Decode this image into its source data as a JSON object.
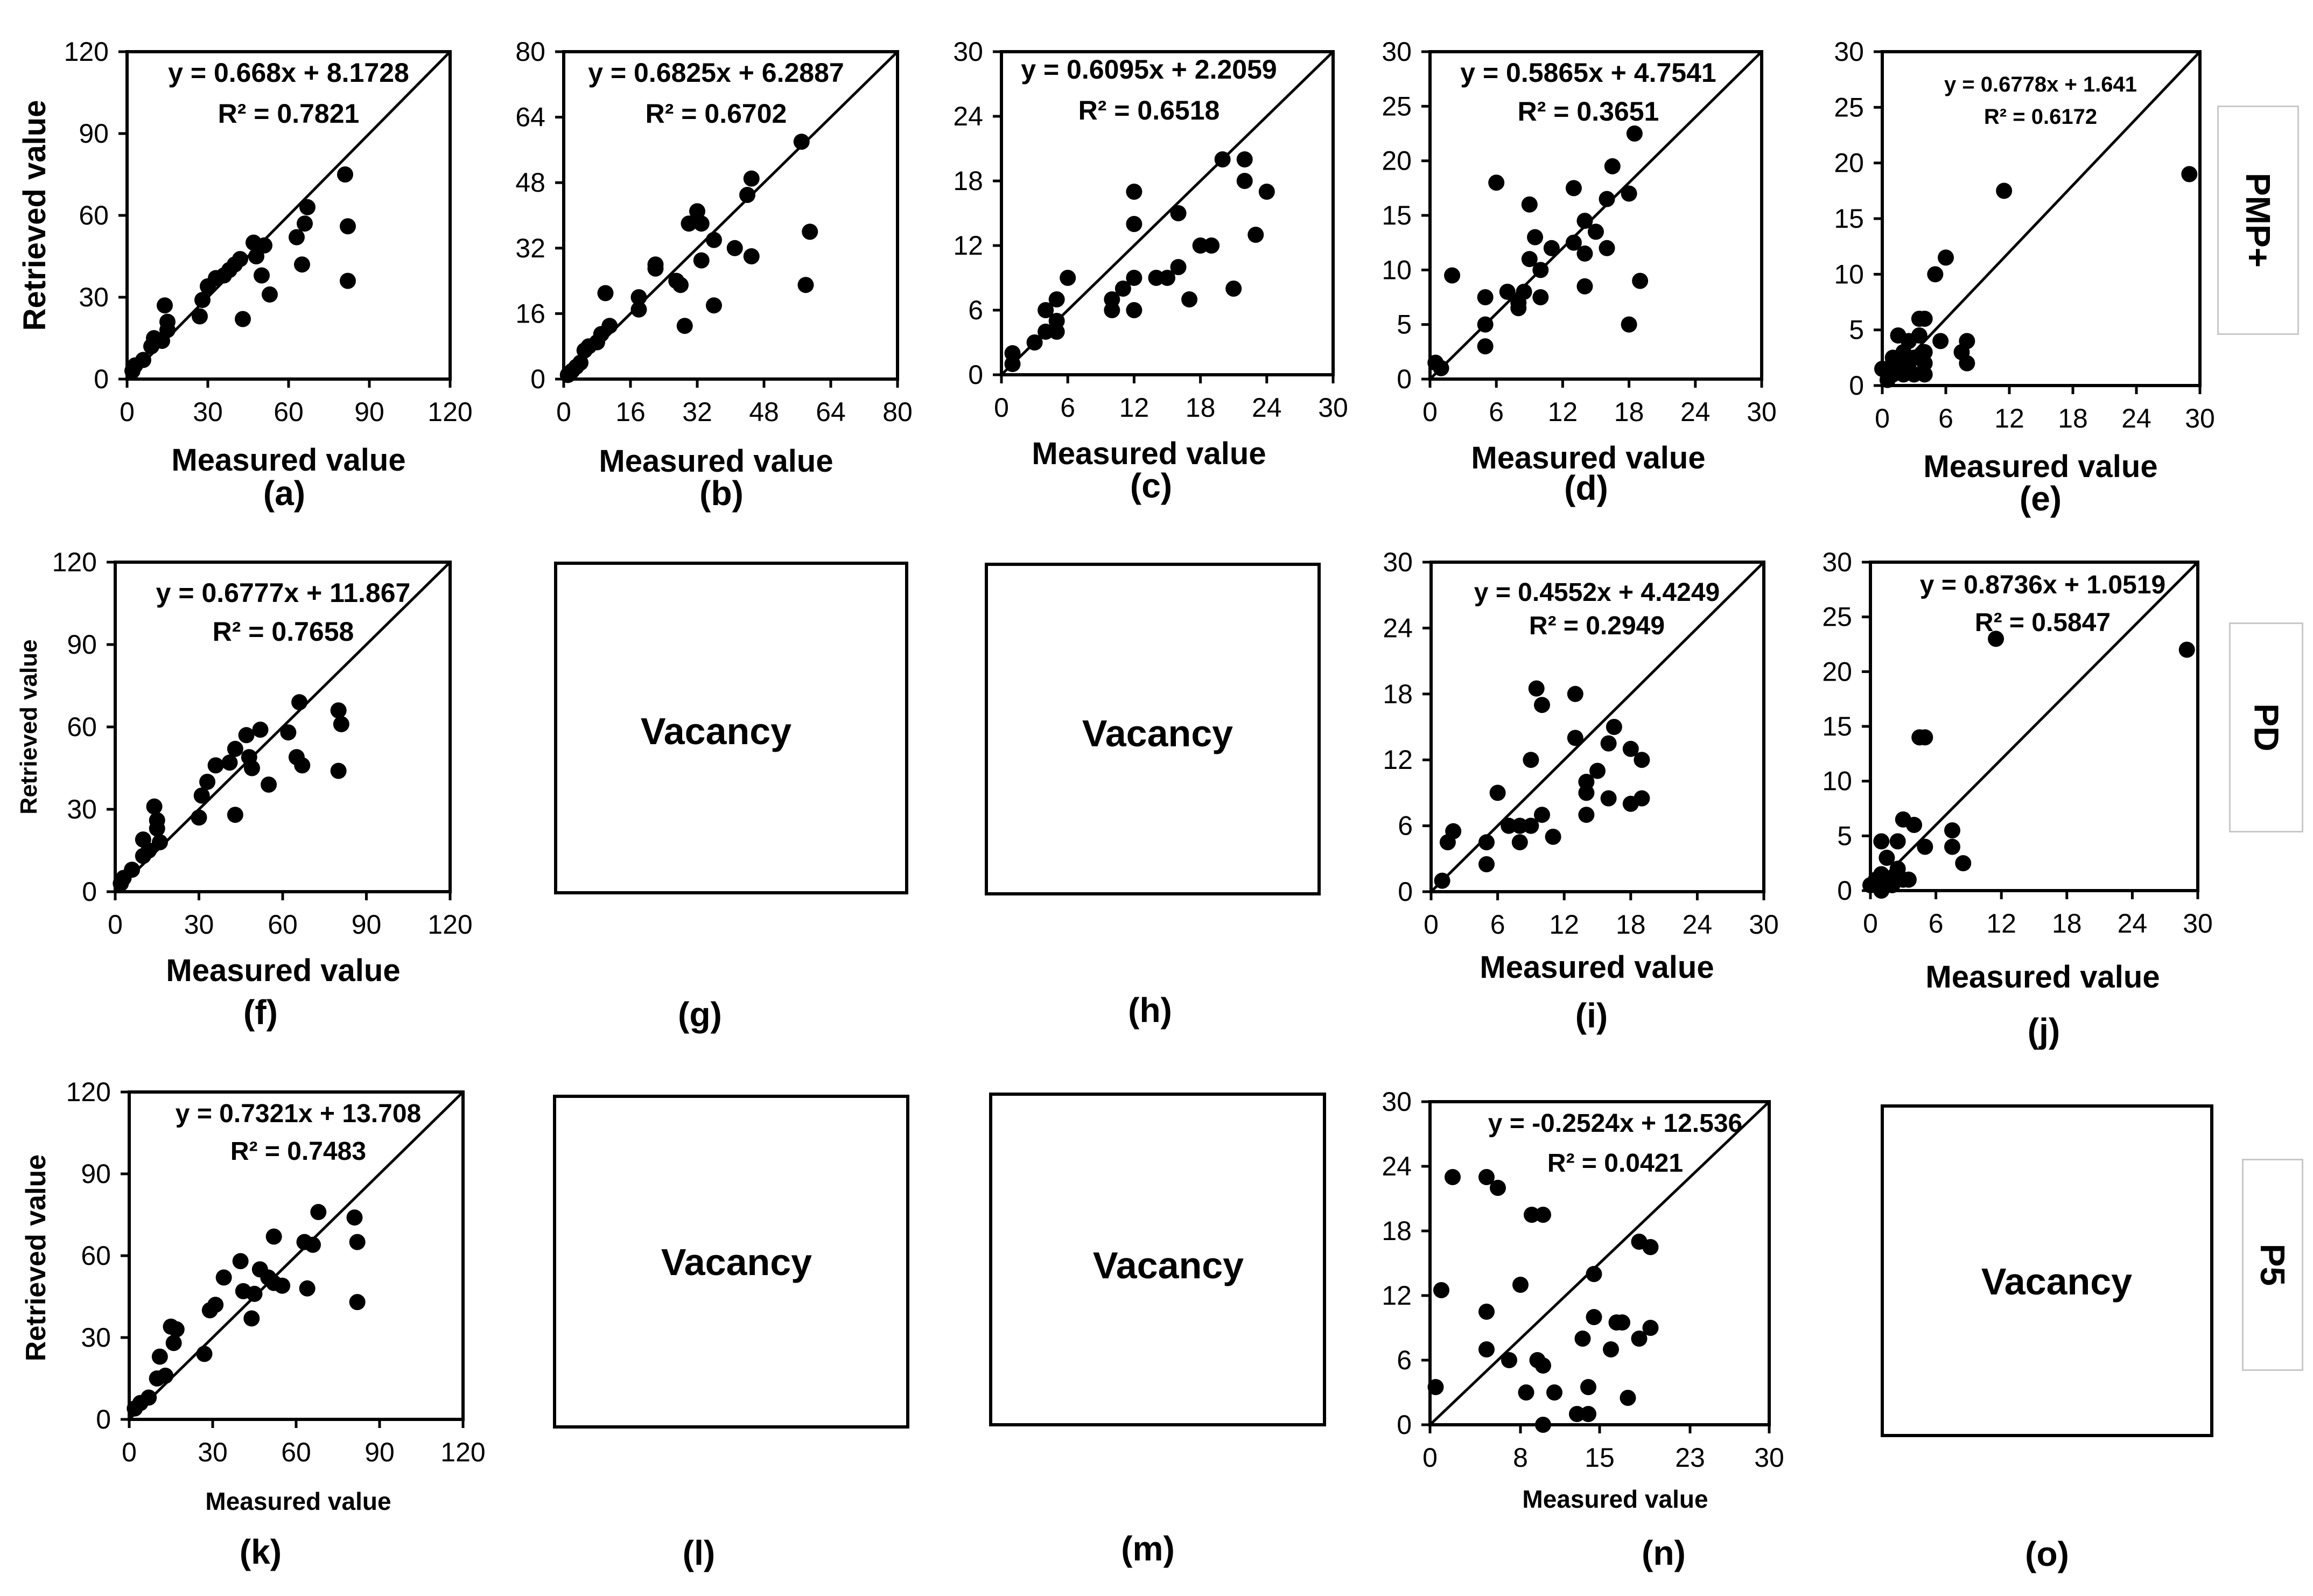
{
  "figure": {
    "row_labels": [
      "PMP+",
      "PD",
      "P5"
    ],
    "vacancy_text": "Vacancy",
    "colors": {
      "ink": "#000000",
      "box_border": "#c8c8c8"
    }
  },
  "chart_data": [
    {
      "panel": "(a)",
      "type": "scatter",
      "equation": "y = 0.668x + 8.1728",
      "r2": "R² = 0.7821",
      "xlabel": "Measured value",
      "ylabel": "Retrieved value",
      "xlim": [
        0,
        120
      ],
      "ylim": [
        0,
        120
      ],
      "xticks": [
        0,
        30,
        60,
        90,
        120
      ],
      "yticks": [
        0,
        30,
        60,
        90,
        120
      ],
      "points": [
        [
          2,
          3
        ],
        [
          3,
          5
        ],
        [
          6,
          7
        ],
        [
          9,
          12
        ],
        [
          10,
          15
        ],
        [
          13,
          14
        ],
        [
          14,
          27
        ],
        [
          15,
          18
        ],
        [
          15,
          21
        ],
        [
          27,
          23
        ],
        [
          28,
          29
        ],
        [
          30,
          34
        ],
        [
          33,
          37
        ],
        [
          36,
          38
        ],
        [
          38,
          40
        ],
        [
          40,
          42
        ],
        [
          42,
          44
        ],
        [
          43,
          22
        ],
        [
          47,
          50
        ],
        [
          48,
          45
        ],
        [
          50,
          38
        ],
        [
          51,
          49
        ],
        [
          53,
          31
        ],
        [
          63,
          52
        ],
        [
          65,
          42
        ],
        [
          66,
          57
        ],
        [
          67,
          63
        ],
        [
          81,
          75
        ],
        [
          82,
          56
        ],
        [
          82,
          36
        ]
      ]
    },
    {
      "panel": "(b)",
      "type": "scatter",
      "equation": "y = 0.6825x + 6.2887",
      "r2": "R² = 0.6702",
      "xlabel": "Measured value",
      "ylabel": "",
      "xlim": [
        0,
        80
      ],
      "ylim": [
        0,
        80
      ],
      "xticks": [
        0,
        16,
        32,
        48,
        64,
        80
      ],
      "yticks": [
        0,
        16,
        32,
        48,
        64,
        80
      ],
      "points": [
        [
          1,
          1
        ],
        [
          2,
          2
        ],
        [
          3,
          3
        ],
        [
          4,
          4
        ],
        [
          5,
          7
        ],
        [
          6,
          8
        ],
        [
          8,
          9
        ],
        [
          9,
          11
        ],
        [
          10,
          21
        ],
        [
          11,
          13
        ],
        [
          18,
          17
        ],
        [
          18,
          20
        ],
        [
          22,
          27
        ],
        [
          22,
          28
        ],
        [
          27,
          24
        ],
        [
          28,
          23
        ],
        [
          29,
          13
        ],
        [
          30,
          38
        ],
        [
          32,
          41
        ],
        [
          33,
          29
        ],
        [
          33,
          38
        ],
        [
          36,
          34
        ],
        [
          36,
          18
        ],
        [
          41,
          32
        ],
        [
          44,
          45
        ],
        [
          45,
          49
        ],
        [
          45,
          30
        ],
        [
          57,
          58
        ],
        [
          58,
          23
        ],
        [
          59,
          36
        ]
      ]
    },
    {
      "panel": "(c)",
      "type": "scatter",
      "equation": "y = 0.6095x + 2.2059",
      "r2": "R² = 0.6518",
      "xlabel": "Measured value",
      "ylabel": "",
      "xlim": [
        0,
        30
      ],
      "ylim": [
        0,
        30
      ],
      "xticks": [
        0,
        6,
        12,
        18,
        24,
        30
      ],
      "yticks": [
        0,
        6,
        12,
        18,
        24,
        30
      ],
      "points": [
        [
          1,
          2
        ],
        [
          1,
          1
        ],
        [
          3,
          3
        ],
        [
          4,
          4
        ],
        [
          4,
          6
        ],
        [
          5,
          7
        ],
        [
          5,
          4
        ],
        [
          5,
          5
        ],
        [
          6,
          9
        ],
        [
          10,
          6
        ],
        [
          10,
          7
        ],
        [
          11,
          8
        ],
        [
          12,
          17
        ],
        [
          12,
          14
        ],
        [
          12,
          9
        ],
        [
          12,
          6
        ],
        [
          14,
          9
        ],
        [
          15,
          9
        ],
        [
          16,
          15
        ],
        [
          16,
          10
        ],
        [
          17,
          7
        ],
        [
          18,
          12
        ],
        [
          19,
          12
        ],
        [
          20,
          20
        ],
        [
          21,
          8
        ],
        [
          22,
          18
        ],
        [
          22,
          20
        ],
        [
          23,
          13
        ],
        [
          24,
          17
        ]
      ]
    },
    {
      "panel": "(d)",
      "type": "scatter",
      "equation": "y = 0.5865x + 4.7541",
      "r2": "R² = 0.3651",
      "xlabel": "Measured value",
      "ylabel": "",
      "xlim": [
        0,
        30
      ],
      "ylim": [
        0,
        30
      ],
      "xticks": [
        0,
        6,
        12,
        18,
        24,
        30
      ],
      "yticks": [
        0,
        5,
        10,
        15,
        20,
        25,
        30
      ],
      "points": [
        [
          0.5,
          1.5
        ],
        [
          1,
          1
        ],
        [
          2,
          9.5
        ],
        [
          5,
          3
        ],
        [
          5,
          5
        ],
        [
          5,
          7.5
        ],
        [
          6,
          18
        ],
        [
          7,
          8
        ],
        [
          8,
          6.5
        ],
        [
          8,
          7
        ],
        [
          8.5,
          8
        ],
        [
          9,
          11
        ],
        [
          9,
          16
        ],
        [
          9.5,
          13
        ],
        [
          10,
          7.5
        ],
        [
          10,
          10
        ],
        [
          11,
          12
        ],
        [
          13,
          12.5
        ],
        [
          13,
          17.5
        ],
        [
          14,
          14.5
        ],
        [
          14,
          8.5
        ],
        [
          14,
          11.5
        ],
        [
          15,
          13.5
        ],
        [
          16,
          12
        ],
        [
          16,
          16.5
        ],
        [
          16.5,
          19.5
        ],
        [
          18,
          17
        ],
        [
          18,
          5
        ],
        [
          18.5,
          22.5
        ],
        [
          19,
          9
        ]
      ]
    },
    {
      "panel": "(e)",
      "type": "scatter",
      "equation": "y = 0.6778x + 1.641",
      "r2": "R² = 0.6172",
      "xlabel": "Measured value",
      "ylabel": "",
      "xlim": [
        0,
        30
      ],
      "ylim": [
        0,
        30
      ],
      "xticks": [
        0,
        6,
        12,
        18,
        24,
        30
      ],
      "yticks": [
        0,
        5,
        10,
        15,
        20,
        25,
        30
      ],
      "points": [
        [
          0,
          1.5
        ],
        [
          0.5,
          0.5
        ],
        [
          1,
          1
        ],
        [
          1,
          2
        ],
        [
          1.5,
          4.5
        ],
        [
          1.5,
          1.5
        ],
        [
          2,
          2
        ],
        [
          2,
          3
        ],
        [
          2,
          1
        ],
        [
          2.5,
          4
        ],
        [
          3,
          2.5
        ],
        [
          3,
          1
        ],
        [
          3.5,
          6
        ],
        [
          4,
          1
        ],
        [
          4,
          2
        ],
        [
          4,
          3
        ],
        [
          4,
          6
        ],
        [
          5,
          10
        ],
        [
          5.5,
          4
        ],
        [
          6,
          11.5
        ],
        [
          7.5,
          3
        ],
        [
          8,
          4
        ],
        [
          8,
          2
        ],
        [
          11.5,
          17.5
        ],
        [
          29,
          19
        ],
        [
          1,
          2.5
        ],
        [
          2.5,
          1.5
        ],
        [
          3.5,
          4.5
        ]
      ]
    },
    {
      "panel": "(f)",
      "type": "scatter",
      "equation": "y = 0.6777x + 11.867",
      "r2": "R² = 0.7658",
      "xlabel": "Measured value",
      "ylabel": "Retrieved value",
      "xlim": [
        0,
        120
      ],
      "ylim": [
        0,
        120
      ],
      "xticks": [
        0,
        30,
        60,
        90,
        120
      ],
      "yticks": [
        0,
        30,
        60,
        90,
        120
      ],
      "points": [
        [
          2,
          3
        ],
        [
          3,
          5
        ],
        [
          6,
          8
        ],
        [
          10,
          13
        ],
        [
          12,
          15
        ],
        [
          14,
          31
        ],
        [
          15,
          23
        ],
        [
          15,
          26
        ],
        [
          16,
          18
        ],
        [
          10,
          19
        ],
        [
          30,
          27
        ],
        [
          31,
          35
        ],
        [
          33,
          40
        ],
        [
          36,
          46
        ],
        [
          41,
          47
        ],
        [
          43,
          52
        ],
        [
          43,
          28
        ],
        [
          47,
          57
        ],
        [
          48,
          49
        ],
        [
          49,
          45
        ],
        [
          52,
          59
        ],
        [
          55,
          39
        ],
        [
          62,
          58
        ],
        [
          65,
          49
        ],
        [
          66,
          69
        ],
        [
          67,
          46
        ],
        [
          80,
          66
        ],
        [
          81,
          61
        ],
        [
          80,
          44
        ]
      ]
    },
    {
      "panel": "(g)",
      "type": "scatter",
      "vacant": true,
      "points": []
    },
    {
      "panel": "(h)",
      "type": "scatter",
      "vacant": true,
      "points": []
    },
    {
      "panel": "(i)",
      "type": "scatter",
      "equation": "y = 0.4552x + 4.4249",
      "r2": "R² = 0.2949",
      "xlabel": "Measured value",
      "ylabel": "",
      "xlim": [
        0,
        30
      ],
      "ylim": [
        0,
        30
      ],
      "xticks": [
        0,
        6,
        12,
        18,
        24,
        30
      ],
      "yticks": [
        0,
        6,
        12,
        18,
        24,
        30
      ],
      "points": [
        [
          1,
          1
        ],
        [
          1.5,
          4.5
        ],
        [
          2,
          5.5
        ],
        [
          5,
          2.5
        ],
        [
          5,
          4.5
        ],
        [
          6,
          9
        ],
        [
          7,
          6
        ],
        [
          8,
          4.5
        ],
        [
          8,
          6
        ],
        [
          9,
          12
        ],
        [
          9,
          6
        ],
        [
          9.5,
          18.5
        ],
        [
          10,
          7
        ],
        [
          10,
          17
        ],
        [
          11,
          5
        ],
        [
          13,
          18
        ],
        [
          13,
          14
        ],
        [
          14,
          10
        ],
        [
          14,
          7
        ],
        [
          14,
          9
        ],
        [
          15,
          11
        ],
        [
          16,
          8.5
        ],
        [
          16,
          13.5
        ],
        [
          16.5,
          15
        ],
        [
          18,
          8
        ],
        [
          18,
          13
        ],
        [
          19,
          12
        ],
        [
          19,
          8.5
        ]
      ]
    },
    {
      "panel": "(j)",
      "type": "scatter",
      "equation": "y = 0.8736x + 1.0519",
      "r2": "R² = 0.5847",
      "xlabel": "Measured value",
      "ylabel": "",
      "xlim": [
        0,
        30
      ],
      "ylim": [
        0,
        30
      ],
      "xticks": [
        0,
        6,
        12,
        18,
        24,
        30
      ],
      "yticks": [
        0,
        5,
        10,
        15,
        20,
        25,
        30
      ],
      "points": [
        [
          0,
          0.5
        ],
        [
          0.5,
          0.5
        ],
        [
          0.5,
          1
        ],
        [
          1,
          0
        ],
        [
          1,
          4.5
        ],
        [
          1.5,
          0.5
        ],
        [
          2,
          0.5
        ],
        [
          2,
          1
        ],
        [
          2.5,
          2
        ],
        [
          2.5,
          4.5
        ],
        [
          3,
          6.5
        ],
        [
          3.5,
          1
        ],
        [
          4,
          6
        ],
        [
          4.5,
          14
        ],
        [
          5,
          4
        ],
        [
          5,
          14
        ],
        [
          7.5,
          5.5
        ],
        [
          7.5,
          4
        ],
        [
          8.5,
          2.5
        ],
        [
          11.5,
          23
        ],
        [
          29,
          22
        ],
        [
          1.5,
          3
        ],
        [
          3,
          1
        ],
        [
          1,
          1.5
        ]
      ]
    },
    {
      "panel": "(k)",
      "type": "scatter",
      "equation": "y = 0.7321x + 13.708",
      "r2": "R² = 0.7483",
      "xlabel": "Measured value",
      "ylabel": "Retrieved value",
      "xlim": [
        0,
        120
      ],
      "ylim": [
        0,
        120
      ],
      "xticks": [
        0,
        30,
        60,
        90,
        120
      ],
      "yticks": [
        0,
        30,
        60,
        90,
        120
      ],
      "points": [
        [
          2,
          4
        ],
        [
          4,
          6
        ],
        [
          7,
          8
        ],
        [
          10,
          15
        ],
        [
          11,
          23
        ],
        [
          13,
          16
        ],
        [
          15,
          34
        ],
        [
          16,
          28
        ],
        [
          17,
          33
        ],
        [
          27,
          24
        ],
        [
          29,
          40
        ],
        [
          31,
          42
        ],
        [
          34,
          52
        ],
        [
          40,
          58
        ],
        [
          41,
          47
        ],
        [
          44,
          37
        ],
        [
          45,
          46
        ],
        [
          47,
          55
        ],
        [
          50,
          52
        ],
        [
          52,
          67
        ],
        [
          52,
          50
        ],
        [
          55,
          49
        ],
        [
          63,
          65
        ],
        [
          64,
          48
        ],
        [
          66,
          64
        ],
        [
          68,
          76
        ],
        [
          81,
          74
        ],
        [
          82,
          65
        ],
        [
          82,
          43
        ]
      ]
    },
    {
      "panel": "(l)",
      "type": "scatter",
      "vacant": true,
      "points": []
    },
    {
      "panel": "(m)",
      "type": "scatter",
      "vacant": true,
      "points": []
    },
    {
      "panel": "(n)",
      "type": "scatter",
      "equation": "y = -0.2524x + 12.536",
      "r2": "R² = 0.0421",
      "xlabel": "Measured value",
      "ylabel": "",
      "xlim": [
        0,
        30
      ],
      "ylim": [
        0,
        30
      ],
      "xticks": [
        0,
        8,
        15,
        23,
        30
      ],
      "yticks": [
        0,
        6,
        12,
        18,
        24,
        30
      ],
      "points": [
        [
          0.5,
          3.5
        ],
        [
          1,
          12.5
        ],
        [
          2,
          23
        ],
        [
          5,
          10.5
        ],
        [
          5,
          23
        ],
        [
          5,
          7
        ],
        [
          6,
          22
        ],
        [
          7,
          6
        ],
        [
          8,
          13
        ],
        [
          8.5,
          3
        ],
        [
          9,
          19.5
        ],
        [
          9.5,
          6
        ],
        [
          10,
          19.5
        ],
        [
          10,
          5.5
        ],
        [
          10,
          0
        ],
        [
          11,
          3
        ],
        [
          13,
          1
        ],
        [
          13.5,
          8
        ],
        [
          14,
          3.5
        ],
        [
          14,
          1
        ],
        [
          14.5,
          14
        ],
        [
          14.5,
          10
        ],
        [
          16,
          7
        ],
        [
          16.5,
          9.5
        ],
        [
          17,
          9.5
        ],
        [
          17.5,
          2.5
        ],
        [
          18.5,
          17
        ],
        [
          18.5,
          8
        ],
        [
          19.5,
          16.5
        ],
        [
          19.5,
          9
        ]
      ]
    },
    {
      "panel": "(o)",
      "type": "scatter",
      "vacant": true,
      "points": []
    }
  ]
}
